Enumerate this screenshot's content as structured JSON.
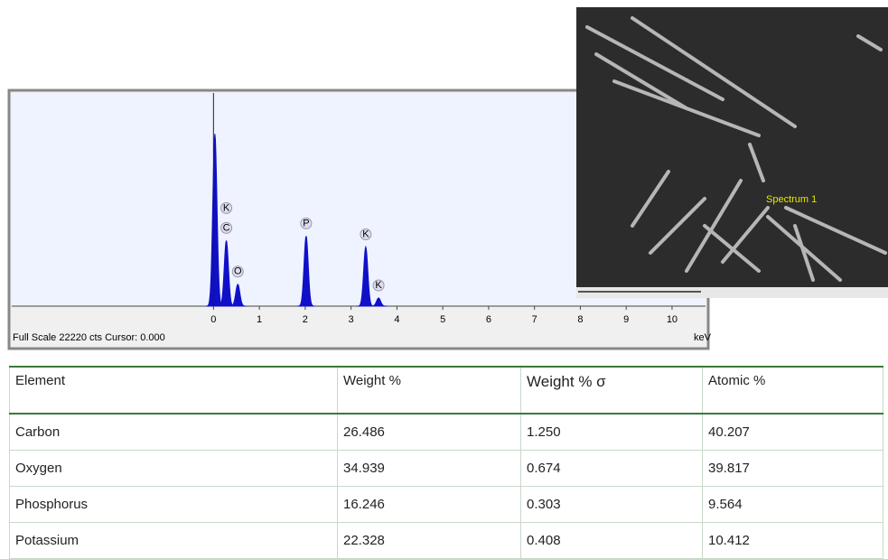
{
  "chart_data": {
    "type": "spectrum",
    "x_label": "keV",
    "footer": "Full Scale 22220 cts Cursor: 0.000",
    "xlim": [
      -4.4,
      10.73
    ],
    "ylim": [
      0,
      22220
    ],
    "xticks": [
      0,
      1,
      2,
      3,
      4,
      5,
      6,
      7,
      8,
      9,
      10
    ],
    "color": "#1010c8",
    "peaks": [
      {
        "label": null,
        "x": 0.03,
        "counts": 17950
      },
      {
        "label": "C",
        "x": 0.28,
        "counts": 6840
      },
      {
        "label": "O",
        "x": 0.53,
        "counts": 2280
      },
      {
        "label": "P",
        "x": 2.02,
        "counts": 7310
      },
      {
        "label": "K",
        "x": 3.32,
        "counts": 6170
      },
      {
        "label": "K",
        "x": 3.6,
        "counts": 850
      }
    ],
    "extra_labels": [
      {
        "label": "K",
        "x": 0.28
      }
    ]
  },
  "image": {
    "marker": "Spectrum 1"
  },
  "table": {
    "header": [
      "Element",
      "Weight %",
      "Weight % σ",
      "Atomic %"
    ],
    "rows": [
      [
        "Carbon",
        "26.486",
        "1.250",
        "40.207"
      ],
      [
        "Oxygen",
        "34.939",
        "0.674",
        "39.817"
      ],
      [
        "Phosphorus",
        "16.246",
        "0.303",
        "9.564"
      ],
      [
        "Potassium",
        "22.328",
        "0.408",
        "10.412"
      ]
    ]
  }
}
